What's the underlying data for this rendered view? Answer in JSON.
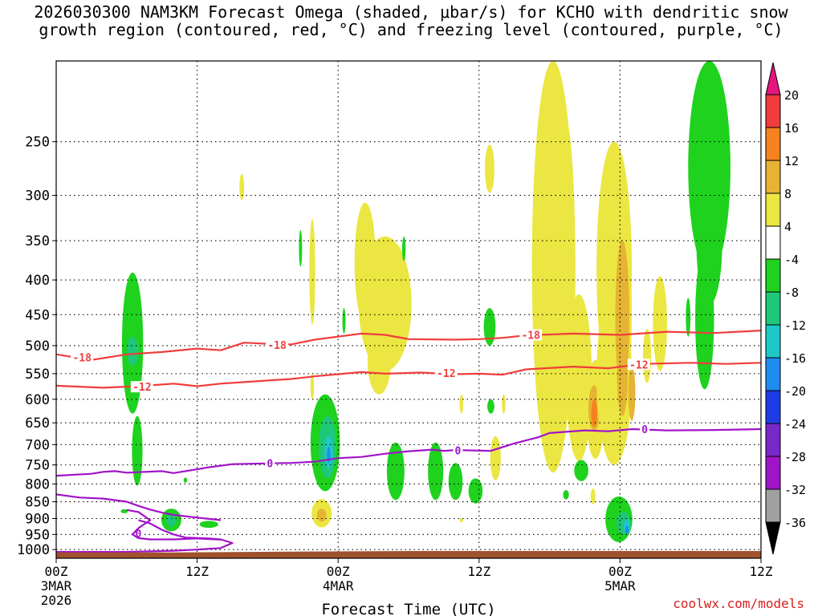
{
  "title_line1": "2026030300 NAM3KM Forecast Omega (shaded, μbar/s) for KCHO with dendritic snow",
  "title_line2": "growth region (contoured, red, °C) and freezing level (contoured, purple, °C)",
  "credit": "coolwx.com/models",
  "chart_data": {
    "type": "heatmap",
    "title": "2026030300 NAM3KM Forecast Omega (shaded, μbar/s) for KCHO with dendritic snow growth region (contoured, red, °C) and freezing level (contoured, purple, °C)",
    "xlabel": "Forecast Time (UTC)",
    "ylabel": "",
    "x_unit": "forecast hour",
    "xlim": [
      0,
      60
    ],
    "y_unit": "hPa",
    "ylim": [
      1030,
      190
    ],
    "y_scale": "log",
    "grid": true,
    "x_ticks": [
      {
        "hour": 0,
        "label": "00Z",
        "sub1": "3MAR",
        "sub2": "2026"
      },
      {
        "hour": 12,
        "label": "12Z",
        "sub1": "",
        "sub2": ""
      },
      {
        "hour": 24,
        "label": "00Z",
        "sub1": "4MAR",
        "sub2": ""
      },
      {
        "hour": 36,
        "label": "12Z",
        "sub1": "",
        "sub2": ""
      },
      {
        "hour": 48,
        "label": "00Z",
        "sub1": "5MAR",
        "sub2": ""
      },
      {
        "hour": 60,
        "label": "12Z",
        "sub1": "",
        "sub2": ""
      }
    ],
    "y_ticks": [
      250,
      300,
      350,
      400,
      450,
      500,
      550,
      600,
      650,
      700,
      750,
      800,
      850,
      900,
      950,
      1000
    ],
    "colorbar": {
      "labels": [
        "20",
        "16",
        "12",
        "8",
        "4",
        "-4",
        "-8",
        "-12",
        "-16",
        "-20",
        "-24",
        "-28",
        "-32",
        "-36"
      ],
      "bins": [
        {
          "from": 16,
          "to": 20,
          "color": "#f03c3c"
        },
        {
          "from": 12,
          "to": 16,
          "color": "#f5821e"
        },
        {
          "from": 8,
          "to": 12,
          "color": "#e6b432"
        },
        {
          "from": 4,
          "to": 8,
          "color": "#ebe641"
        },
        {
          "from": -4,
          "to": 4,
          "color": "#ffffff"
        },
        {
          "from": -8,
          "to": -4,
          "color": "#1ed21e"
        },
        {
          "from": -12,
          "to": -8,
          "color": "#1ec878"
        },
        {
          "from": -16,
          "to": -12,
          "color": "#1ec8c8"
        },
        {
          "from": -20,
          "to": -16,
          "color": "#1e8cf0"
        },
        {
          "from": -24,
          "to": -20,
          "color": "#1e3ce6"
        },
        {
          "from": -28,
          "to": -24,
          "color": "#7828c8"
        },
        {
          "from": -32,
          "to": -28,
          "color": "#a014c8"
        },
        {
          "from": -36,
          "to": -32,
          "color": "#a0a0a0"
        }
      ],
      "over_color": "#e6147d",
      "under_color": "#000000"
    },
    "ground_color": "#a0522d",
    "ground": [
      {
        "x": 0,
        "p": 1010
      },
      {
        "x": 10,
        "p": 1010
      },
      {
        "x": 20,
        "p": 1007
      },
      {
        "x": 30,
        "p": 1005
      },
      {
        "x": 40,
        "p": 1005
      },
      {
        "x": 50,
        "p": 1005
      },
      {
        "x": 60,
        "p": 1005
      }
    ],
    "omega_blobs": [
      {
        "x": 6.5,
        "p": 510,
        "w": 1.8,
        "h": 240,
        "value": -6
      },
      {
        "x": 6.5,
        "p": 510,
        "w": 1.0,
        "h": 50,
        "value": -10
      },
      {
        "x": 6.9,
        "p": 720,
        "w": 0.9,
        "h": 170,
        "value": -6
      },
      {
        "x": 9.8,
        "p": 905,
        "w": 1.7,
        "h": 70,
        "value": -6
      },
      {
        "x": 9.8,
        "p": 905,
        "w": 0.9,
        "h": 40,
        "value": -10
      },
      {
        "x": 13.0,
        "p": 918,
        "w": 1.6,
        "h": 22,
        "value": -6
      },
      {
        "x": 5.8,
        "p": 878,
        "w": 0.6,
        "h": 12,
        "value": -6
      },
      {
        "x": 11.0,
        "p": 790,
        "w": 0.3,
        "h": 14,
        "value": -6
      },
      {
        "x": 15.8,
        "p": 292,
        "w": 0.4,
        "h": 26,
        "value": 6
      },
      {
        "x": 20.8,
        "p": 360,
        "w": 0.2,
        "h": 45,
        "value": -6
      },
      {
        "x": 21.8,
        "p": 395,
        "w": 0.5,
        "h": 140,
        "value": 6
      },
      {
        "x": 21.8,
        "p": 575,
        "w": 0.3,
        "h": 50,
        "value": 6
      },
      {
        "x": 22.9,
        "p": 705,
        "w": 2.5,
        "h": 230,
        "value": -6
      },
      {
        "x": 23.1,
        "p": 710,
        "w": 1.5,
        "h": 150,
        "value": -10
      },
      {
        "x": 23.2,
        "p": 720,
        "w": 0.7,
        "h": 80,
        "value": -14
      },
      {
        "x": 23.2,
        "p": 725,
        "w": 0.3,
        "h": 40,
        "value": -19
      },
      {
        "x": 22.6,
        "p": 885,
        "w": 1.7,
        "h": 85,
        "value": 6
      },
      {
        "x": 22.6,
        "p": 890,
        "w": 0.8,
        "h": 40,
        "value": 10
      },
      {
        "x": 24.5,
        "p": 460,
        "w": 0.2,
        "h": 40,
        "value": -6
      },
      {
        "x": 26.3,
        "p": 385,
        "w": 1.8,
        "h": 155,
        "value": 6
      },
      {
        "x": 28.0,
        "p": 445,
        "w": 4.5,
        "h": 200,
        "value": 6
      },
      {
        "x": 27.5,
        "p": 530,
        "w": 2.0,
        "h": 120,
        "value": 6
      },
      {
        "x": 28.9,
        "p": 770,
        "w": 1.5,
        "h": 150,
        "value": -6
      },
      {
        "x": 29.6,
        "p": 360,
        "w": 0.3,
        "h": 30,
        "value": -6
      },
      {
        "x": 32.3,
        "p": 770,
        "w": 1.3,
        "h": 150,
        "value": -6
      },
      {
        "x": 34.0,
        "p": 795,
        "w": 1.2,
        "h": 100,
        "value": -6
      },
      {
        "x": 35.7,
        "p": 820,
        "w": 1.2,
        "h": 70,
        "value": -6
      },
      {
        "x": 34.5,
        "p": 610,
        "w": 0.3,
        "h": 40,
        "value": 6
      },
      {
        "x": 34.5,
        "p": 905,
        "w": 0.3,
        "h": 12,
        "value": 6
      },
      {
        "x": 36.9,
        "p": 275,
        "w": 0.8,
        "h": 45,
        "value": 6
      },
      {
        "x": 36.9,
        "p": 470,
        "w": 1.0,
        "h": 60,
        "value": -6
      },
      {
        "x": 37.0,
        "p": 615,
        "w": 0.6,
        "h": 30,
        "value": -6
      },
      {
        "x": 38.1,
        "p": 610,
        "w": 0.3,
        "h": 40,
        "value": 6
      },
      {
        "x": 37.4,
        "p": 735,
        "w": 0.9,
        "h": 110,
        "value": 6
      },
      {
        "x": 41.6,
        "p": 300,
        "w": 0.4,
        "h": 10,
        "value": -6
      },
      {
        "x": 42.3,
        "p": 470,
        "w": 3.6,
        "h": 600,
        "value": 6
      },
      {
        "x": 43.3,
        "p": 440,
        "w": 1.8,
        "h": 420,
        "value": 6
      },
      {
        "x": 44.5,
        "p": 580,
        "w": 2.2,
        "h": 320,
        "value": 6
      },
      {
        "x": 45.9,
        "p": 630,
        "w": 1.6,
        "h": 210,
        "value": 6
      },
      {
        "x": 45.8,
        "p": 620,
        "w": 1.0,
        "h": 95,
        "value": 10
      },
      {
        "x": 45.8,
        "p": 630,
        "w": 0.5,
        "h": 60,
        "value": 14
      },
      {
        "x": 47.5,
        "p": 420,
        "w": 3.0,
        "h": 340,
        "value": 6
      },
      {
        "x": 48.2,
        "p": 470,
        "w": 1.6,
        "h": 300,
        "value": 6
      },
      {
        "x": 47.5,
        "p": 580,
        "w": 3.0,
        "h": 340,
        "value": 6
      },
      {
        "x": 48.2,
        "p": 470,
        "w": 1.2,
        "h": 240,
        "value": 10
      },
      {
        "x": 48.2,
        "p": 560,
        "w": 0.9,
        "h": 150,
        "value": 10
      },
      {
        "x": 49.0,
        "p": 590,
        "w": 0.6,
        "h": 110,
        "value": 10
      },
      {
        "x": 50.3,
        "p": 520,
        "w": 0.7,
        "h": 95,
        "value": 6
      },
      {
        "x": 51.4,
        "p": 470,
        "w": 1.2,
        "h": 150,
        "value": 6
      },
      {
        "x": 43.4,
        "p": 830,
        "w": 0.5,
        "h": 26,
        "value": -6
      },
      {
        "x": 44.7,
        "p": 765,
        "w": 1.2,
        "h": 55,
        "value": -6
      },
      {
        "x": 45.7,
        "p": 835,
        "w": 0.4,
        "h": 45,
        "value": 6
      },
      {
        "x": 47.9,
        "p": 905,
        "w": 2.3,
        "h": 140,
        "value": -6
      },
      {
        "x": 48.3,
        "p": 915,
        "w": 1.2,
        "h": 70,
        "value": -10
      },
      {
        "x": 48.6,
        "p": 925,
        "w": 0.6,
        "h": 45,
        "value": -14
      },
      {
        "x": 48.6,
        "p": 935,
        "w": 0.3,
        "h": 25,
        "value": -18
      },
      {
        "x": 55.6,
        "p": 280,
        "w": 3.6,
        "h": 220,
        "value": -6
      },
      {
        "x": 55.6,
        "p": 360,
        "w": 2.2,
        "h": 150,
        "value": -6
      },
      {
        "x": 55.2,
        "p": 470,
        "w": 1.6,
        "h": 220,
        "value": -6
      },
      {
        "x": 53.8,
        "p": 455,
        "w": 0.4,
        "h": 60,
        "value": -6
      }
    ],
    "dendritic_contours": [
      {
        "level": -18,
        "label": "-18",
        "color": "#f03c3c",
        "points": [
          [
            0,
            515
          ],
          [
            3,
            525
          ],
          [
            6,
            515
          ],
          [
            9,
            511
          ],
          [
            12,
            505
          ],
          [
            14,
            508
          ],
          [
            16,
            495
          ],
          [
            18,
            497
          ],
          [
            20,
            498
          ],
          [
            22,
            490
          ],
          [
            24,
            485
          ],
          [
            26,
            480
          ],
          [
            28,
            482
          ],
          [
            30,
            489
          ],
          [
            34,
            490
          ],
          [
            36,
            489
          ],
          [
            38,
            487
          ],
          [
            40,
            483
          ],
          [
            44,
            480
          ],
          [
            48,
            482
          ],
          [
            52,
            477
          ],
          [
            56,
            479
          ],
          [
            60,
            475
          ]
        ],
        "label_positions": [
          [
            2.2,
            520
          ],
          [
            18.8,
            499
          ],
          [
            40.4,
            482
          ]
        ]
      },
      {
        "level": -12,
        "label": "-12",
        "color": "#f03c3c",
        "points": [
          [
            0,
            573
          ],
          [
            4,
            577
          ],
          [
            7,
            574
          ],
          [
            10,
            569
          ],
          [
            12,
            574
          ],
          [
            14,
            569
          ],
          [
            16,
            566
          ],
          [
            18,
            563
          ],
          [
            20,
            560
          ],
          [
            22,
            555
          ],
          [
            24,
            551
          ],
          [
            26,
            547
          ],
          [
            28,
            550
          ],
          [
            31,
            548
          ],
          [
            34,
            551
          ],
          [
            36,
            550
          ],
          [
            38,
            552
          ],
          [
            40,
            542
          ],
          [
            44,
            537
          ],
          [
            47,
            540
          ],
          [
            50,
            532
          ],
          [
            54,
            530
          ],
          [
            57,
            532
          ],
          [
            60,
            530
          ]
        ],
        "label_positions": [
          [
            7.3,
            575
          ],
          [
            33.2,
            549
          ],
          [
            49.6,
            533
          ]
        ]
      }
    ],
    "freezing_contours": [
      {
        "level": 0,
        "label": "0",
        "color": "#a014c8",
        "points": [
          [
            0,
            778
          ],
          [
            3,
            773
          ],
          [
            4,
            768
          ],
          [
            5,
            766
          ],
          [
            6,
            770
          ],
          [
            9,
            766
          ],
          [
            10,
            771
          ],
          [
            13,
            756
          ],
          [
            15,
            748
          ],
          [
            18,
            746
          ],
          [
            20,
            745
          ],
          [
            22,
            742
          ],
          [
            24,
            733
          ],
          [
            26,
            730
          ],
          [
            28,
            722
          ],
          [
            30,
            716
          ],
          [
            32,
            712
          ],
          [
            33,
            715
          ],
          [
            34,
            713
          ],
          [
            37,
            715
          ],
          [
            39,
            697
          ],
          [
            41,
            683
          ],
          [
            42,
            673
          ],
          [
            45,
            667
          ],
          [
            47,
            669
          ],
          [
            49,
            664
          ],
          [
            52,
            667
          ],
          [
            56,
            666
          ],
          [
            60,
            664
          ]
        ],
        "label_positions": [
          [
            18.2,
            746
          ],
          [
            34.2,
            714
          ],
          [
            50.1,
            664
          ]
        ]
      },
      {
        "level": 0,
        "label": "0",
        "color": "#a014c8",
        "points": [
          [
            0,
            829
          ],
          [
            2,
            838
          ],
          [
            4,
            841
          ],
          [
            6,
            850
          ],
          [
            7,
            862
          ],
          [
            8,
            873
          ],
          [
            9,
            882
          ],
          [
            10,
            889
          ],
          [
            11,
            893
          ],
          [
            12,
            897
          ],
          [
            13,
            901
          ],
          [
            14,
            905
          ]
        ],
        "label_positions": [
          [
            7.0,
            947
          ]
        ]
      },
      {
        "level": 0,
        "label": "0",
        "color": "#a014c8",
        "points": [
          [
            7,
            905
          ],
          [
            8,
            915
          ],
          [
            9,
            935
          ],
          [
            10,
            950
          ],
          [
            11,
            960
          ],
          [
            13,
            963
          ],
          [
            14,
            966
          ],
          [
            15,
            978
          ],
          [
            14,
            995
          ],
          [
            12,
            1000
          ],
          [
            10,
            1004
          ],
          [
            8,
            1006
          ],
          [
            6,
            1008
          ],
          [
            4,
            1008
          ],
          [
            2,
            1008
          ],
          [
            0,
            1008
          ]
        ],
        "label_positions": []
      },
      {
        "level": 0,
        "label": "0",
        "color": "#a014c8",
        "points": [
          [
            6,
            874
          ],
          [
            7,
            880
          ],
          [
            8,
            905
          ],
          [
            7,
            930
          ],
          [
            6.5,
            950
          ],
          [
            7,
            962
          ],
          [
            8,
            966
          ],
          [
            10,
            966
          ],
          [
            12,
            963
          ],
          [
            14,
            967
          ]
        ],
        "label_positions": []
      }
    ]
  }
}
